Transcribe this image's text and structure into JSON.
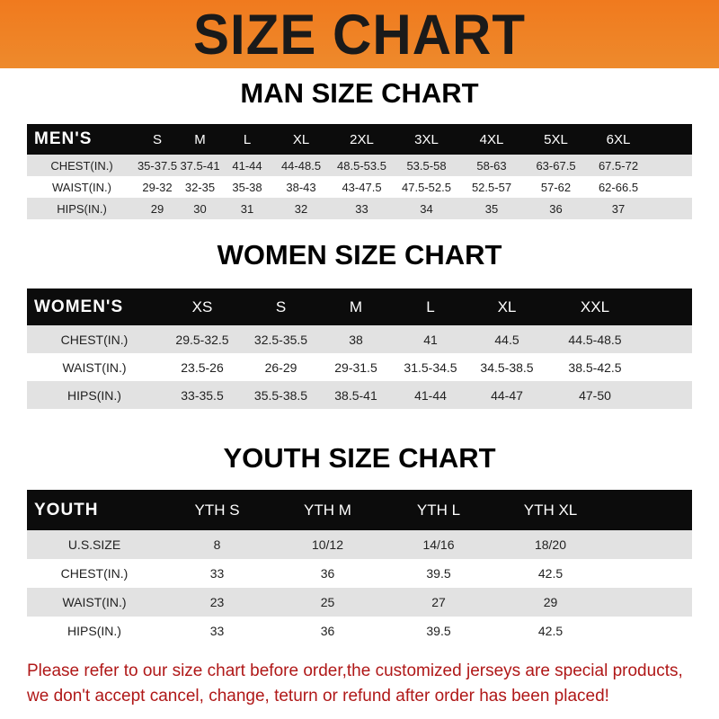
{
  "banner_title": "SIZE CHART",
  "men": {
    "title": "MAN SIZE CHART",
    "header": [
      "MEN'S",
      "S",
      "M",
      "L",
      "XL",
      "2XL",
      "3XL",
      "4XL",
      "5XL",
      "6XL"
    ],
    "rows": [
      [
        "CHEST(IN.)",
        "35-37.5",
        "37.5-41",
        "41-44",
        "44-48.5",
        "48.5-53.5",
        "53.5-58",
        "58-63",
        "63-67.5",
        "67.5-72"
      ],
      [
        "WAIST(IN.)",
        "29-32",
        "32-35",
        "35-38",
        "38-43",
        "43-47.5",
        "47.5-52.5",
        "52.5-57",
        "57-62",
        "62-66.5"
      ],
      [
        "HIPS(IN.)",
        "29",
        "30",
        "31",
        "32",
        "33",
        "34",
        "35",
        "36",
        "37"
      ]
    ]
  },
  "women": {
    "title": "WOMEN SIZE CHART",
    "header": [
      "WOMEN'S",
      "XS",
      "S",
      "M",
      "L",
      "XL",
      "XXL"
    ],
    "rows": [
      [
        "CHEST(IN.)",
        "29.5-32.5",
        "32.5-35.5",
        "38",
        "41",
        "44.5",
        "44.5-48.5"
      ],
      [
        "WAIST(IN.)",
        "23.5-26",
        "26-29",
        "29-31.5",
        "31.5-34.5",
        "34.5-38.5",
        "38.5-42.5"
      ],
      [
        "HIPS(IN.)",
        "33-35.5",
        "35.5-38.5",
        "38.5-41",
        "41-44",
        "44-47",
        "47-50"
      ]
    ]
  },
  "youth": {
    "title": "YOUTH SIZE CHART",
    "header": [
      "YOUTH",
      "YTH S",
      "YTH M",
      "YTH L",
      "YTH XL"
    ],
    "rows": [
      [
        "U.S.SIZE",
        "8",
        "10/12",
        "14/16",
        "18/20"
      ],
      [
        "CHEST(IN.)",
        "33",
        "36",
        "39.5",
        "42.5"
      ],
      [
        "WAIST(IN.)",
        "23",
        "25",
        "27",
        "29"
      ],
      [
        "HIPS(IN.)",
        "33",
        "36",
        "39.5",
        "42.5"
      ]
    ]
  },
  "footer": {
    "line1": "Please refer to our size chart before order,the customized jerseys are special products,",
    "line2": "we don't accept cancel, change, teturn or refund after order has been placed!"
  },
  "colors": {
    "banner": "#f07a1e",
    "header_row": "#0c0c0c",
    "stripe": "#e2e2e2",
    "notice": "#b01818"
  }
}
